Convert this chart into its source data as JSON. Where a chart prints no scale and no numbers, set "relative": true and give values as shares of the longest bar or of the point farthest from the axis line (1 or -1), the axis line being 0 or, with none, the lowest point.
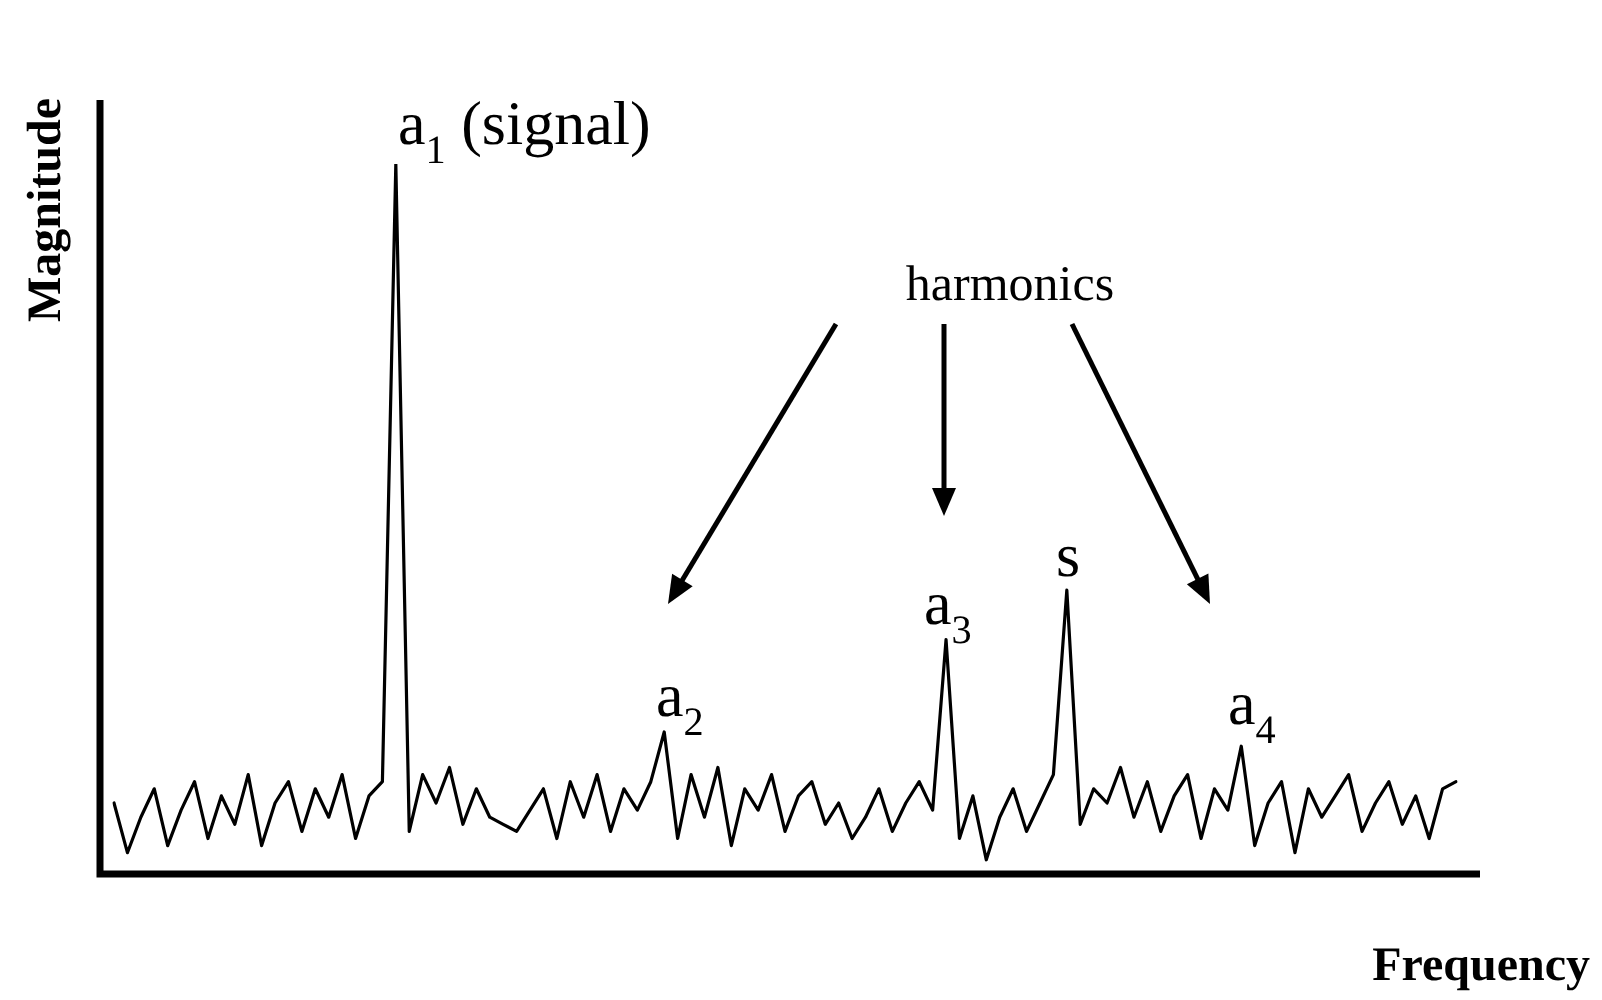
{
  "chart_data": {
    "type": "line",
    "relative": true,
    "xlabel": "Frequency",
    "ylabel": "Magnitude",
    "color": "#000000",
    "marker": "none",
    "line_style": "solid",
    "legend": false,
    "tick_labels": false,
    "categories": [
      null,
      null,
      null,
      null,
      null,
      null,
      null,
      null,
      null,
      null,
      null,
      null,
      null,
      null,
      null,
      null,
      null,
      null,
      null,
      null,
      null,
      null,
      null,
      null,
      null,
      null,
      null,
      null,
      null,
      null,
      null,
      null,
      null,
      null,
      null,
      null,
      null,
      null,
      null,
      null,
      null,
      null,
      null,
      null,
      null,
      null,
      null,
      null,
      null,
      null,
      null,
      null,
      null,
      null,
      null,
      null,
      null,
      null,
      null,
      null,
      null,
      null,
      null,
      null,
      null,
      null,
      null,
      null,
      null,
      null,
      null,
      null,
      null,
      null,
      null,
      null,
      null,
      null,
      null,
      null,
      null,
      null,
      null,
      null,
      null,
      null,
      null,
      null,
      null,
      null,
      null,
      null,
      null,
      null,
      null,
      null,
      null,
      null,
      null,
      null,
      null
    ],
    "values": [
      0.1,
      0.03,
      0.08,
      0.12,
      0.04,
      0.09,
      0.13,
      0.05,
      0.11,
      0.07,
      0.14,
      0.04,
      0.1,
      0.13,
      0.06,
      0.12,
      0.08,
      0.14,
      0.05,
      0.11,
      0.13,
      1,
      0.06,
      0.14,
      0.1,
      0.15,
      0.07,
      0.12,
      0.08,
      0.07,
      0.06,
      0.09,
      0.12,
      0.05,
      0.13,
      0.08,
      0.14,
      0.06,
      0.12,
      0.09,
      0.13,
      0.2,
      0.05,
      0.14,
      0.08,
      0.15,
      0.04,
      0.12,
      0.09,
      0.14,
      0.06,
      0.11,
      0.13,
      0.07,
      0.1,
      0.05,
      0.08,
      0.12,
      0.06,
      0.1,
      0.13,
      0.09,
      0.33,
      0.05,
      0.11,
      0.02,
      0.08,
      0.12,
      0.06,
      0.1,
      0.14,
      0.4,
      0.07,
      0.12,
      0.1,
      0.15,
      0.08,
      0.13,
      0.06,
      0.11,
      0.14,
      0.05,
      0.12,
      0.09,
      0.18,
      0.04,
      0.1,
      0.13,
      0.03,
      0.12,
      0.08,
      0.11,
      0.14,
      0.06,
      0.1,
      0.13,
      0.07,
      0.11,
      0.05,
      0.12,
      0.13
    ],
    "annotations": [
      "a$_{1}$ (signal)",
      "harmonics",
      "a$_{2}$",
      "a$_{3}$",
      "s",
      "a$_{4}$"
    ]
  }
}
